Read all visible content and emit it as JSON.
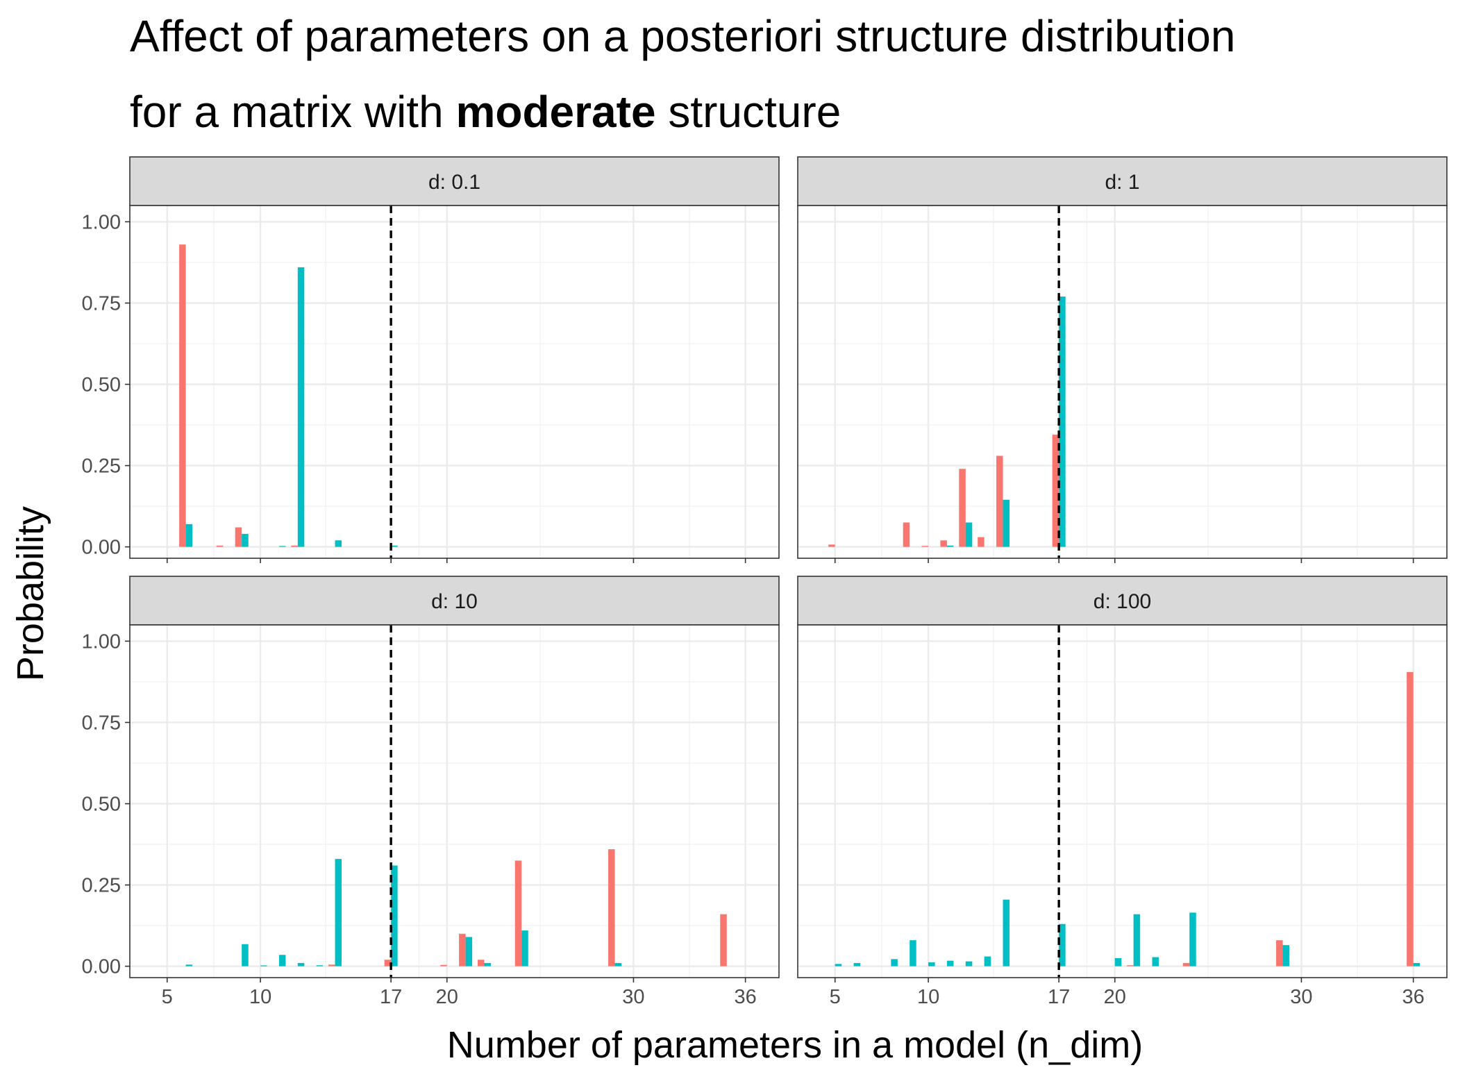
{
  "chart_data": {
    "type": "bar",
    "title": {
      "line1": "Affect of parameters on a posteriori structure distribution",
      "line2_prefix": "for a matrix with ",
      "line2_bold": "moderate",
      "line2_suffix": " structure"
    },
    "xlabel": "Number of parameters in a model (n_dim)",
    "ylabel": "Probability",
    "xlim": [
      3,
      37.8
    ],
    "ylim": [
      -0.035,
      1.05
    ],
    "x_ticks": [
      5,
      10,
      17,
      20,
      30,
      36
    ],
    "x_tick_labels": [
      "5",
      "10",
      "17",
      "20",
      "30",
      "36"
    ],
    "y_ticks": [
      0,
      0.25,
      0.5,
      0.75,
      1
    ],
    "y_tick_labels": [
      "0.00",
      "0.25",
      "0.50",
      "0.75",
      "1.00"
    ],
    "reference_line": {
      "x": 17,
      "style": "dashed"
    },
    "grid": true,
    "legend": "none",
    "series_colors": {
      "a": "#F8766D",
      "b": "#00BFC4"
    },
    "panels": [
      {
        "label": "d: 0.1",
        "series": [
          {
            "color": "a",
            "points": [
              [
                6,
                0.93
              ],
              [
                8,
                0.004
              ],
              [
                9,
                0.06
              ],
              [
                12,
                0.004
              ]
            ]
          },
          {
            "color": "b",
            "points": [
              [
                6,
                0.07
              ],
              [
                9,
                0.04
              ],
              [
                11,
                0.002
              ],
              [
                12,
                0.86
              ],
              [
                14,
                0.02
              ],
              [
                17,
                0.004
              ]
            ]
          }
        ]
      },
      {
        "label": "d: 1",
        "series": [
          {
            "color": "a",
            "points": [
              [
                5,
                0.007
              ],
              [
                9,
                0.075
              ],
              [
                10,
                0.003
              ],
              [
                11,
                0.02
              ],
              [
                12,
                0.24
              ],
              [
                13,
                0.03
              ],
              [
                14,
                0.28
              ],
              [
                17,
                0.345
              ]
            ]
          },
          {
            "color": "b",
            "points": [
              [
                11,
                0.004
              ],
              [
                12,
                0.075
              ],
              [
                14,
                0.145
              ],
              [
                17,
                0.77
              ]
            ]
          }
        ]
      },
      {
        "label": "d: 10",
        "series": [
          {
            "color": "a",
            "points": [
              [
                14,
                0.005
              ],
              [
                17,
                0.02
              ],
              [
                20,
                0.004
              ],
              [
                21,
                0.1
              ],
              [
                22,
                0.02
              ],
              [
                24,
                0.325
              ],
              [
                29,
                0.36
              ],
              [
                35,
                0.16
              ]
            ]
          },
          {
            "color": "b",
            "points": [
              [
                6,
                0.005
              ],
              [
                9,
                0.068
              ],
              [
                10,
                0.002
              ],
              [
                11,
                0.035
              ],
              [
                12,
                0.01
              ],
              [
                13,
                0.003
              ],
              [
                14,
                0.33
              ],
              [
                17,
                0.31
              ],
              [
                21,
                0.09
              ],
              [
                22,
                0.01
              ],
              [
                24,
                0.11
              ],
              [
                29,
                0.01
              ]
            ]
          }
        ]
      },
      {
        "label": "d: 100",
        "series": [
          {
            "color": "a",
            "points": [
              [
                21,
                0.003
              ],
              [
                24,
                0.01
              ],
              [
                29,
                0.08
              ],
              [
                36,
                0.905
              ]
            ]
          },
          {
            "color": "b",
            "points": [
              [
                5,
                0.007
              ],
              [
                6,
                0.01
              ],
              [
                8,
                0.022
              ],
              [
                9,
                0.08
              ],
              [
                10,
                0.012
              ],
              [
                11,
                0.017
              ],
              [
                12,
                0.015
              ],
              [
                13,
                0.03
              ],
              [
                14,
                0.205
              ],
              [
                17,
                0.13
              ],
              [
                20,
                0.025
              ],
              [
                21,
                0.16
              ],
              [
                22,
                0.028
              ],
              [
                24,
                0.165
              ],
              [
                29,
                0.065
              ],
              [
                36,
                0.01
              ]
            ]
          }
        ]
      }
    ]
  }
}
